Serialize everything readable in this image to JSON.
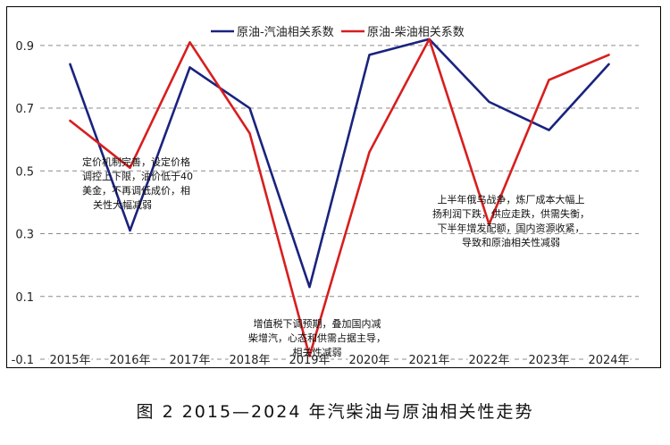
{
  "chart_data": {
    "type": "line",
    "title": "",
    "xlabel": "",
    "ylabel": "",
    "categories": [
      "2015年",
      "2016年",
      "2017年",
      "2018年",
      "2019年",
      "2020年",
      "2021年",
      "2022年",
      "2023年",
      "2024年"
    ],
    "yticks": [
      "-0.1",
      "0.1",
      "0.3",
      "0.5",
      "0.7",
      "0.9"
    ],
    "ytick_values": [
      -0.1,
      0.1,
      0.3,
      0.5,
      0.7,
      0.9
    ],
    "ylim": [
      -0.1,
      1.0
    ],
    "grid": "horizontal-dashed",
    "legend_position": "top",
    "series": [
      {
        "name": "原油-汽油相关系数",
        "color": "#1a237e",
        "values": [
          0.84,
          0.31,
          0.83,
          0.7,
          0.13,
          0.87,
          0.92,
          0.72,
          0.63,
          0.84
        ]
      },
      {
        "name": "原油-柴油相关系数",
        "color": "#d81e1e",
        "values": [
          0.66,
          0.51,
          0.91,
          0.62,
          -0.09,
          0.56,
          0.92,
          0.33,
          0.79,
          0.87
        ]
      }
    ],
    "annotations": [
      {
        "lines": [
          "定价机制完善，设定价格",
          "调控上下限，油价低于40",
          "美金，不再调低成价，相",
          "关性大幅减弱"
        ]
      },
      {
        "lines": [
          "增值税下调预期，叠加国内减",
          "柴增汽，心态和供需占据主导，",
          "相关性减弱"
        ]
      },
      {
        "lines": [
          "上半年俄乌战争，炼厂成本大幅上",
          "扬利润下跌，供应走跌，供需失衡，",
          "下半年增发配额，国内资源收紧，",
          "导致和原油相关性减弱"
        ]
      }
    ]
  },
  "caption": "图 2   2015—2024 年汽柴油与原油相关性走势"
}
